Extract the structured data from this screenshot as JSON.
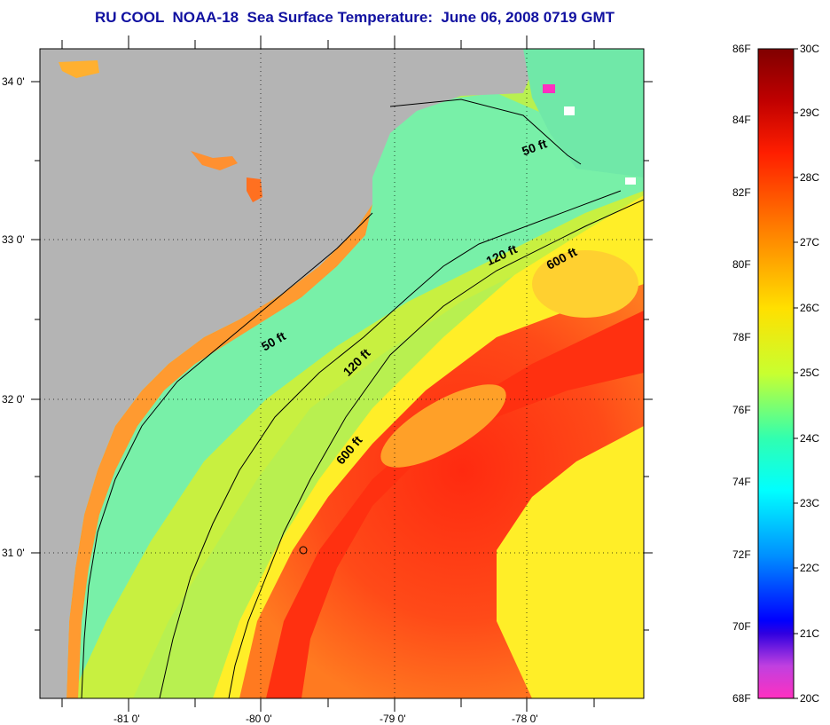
{
  "title": "RU COOL  NOAA-18  Sea Surface Temperature:  June 06, 2008 0719 GMT",
  "map": {
    "lat_labels": [
      "34 0'",
      "33 0'",
      "32 0'",
      "31 0'"
    ],
    "lon_labels": [
      "-81 0'",
      "-80 0'",
      "-79 0'",
      "-78 0'"
    ],
    "contours": [
      {
        "label": "50 ft"
      },
      {
        "label": "120 ft"
      },
      {
        "label": "600 ft"
      }
    ],
    "colors": {
      "land": "#b4b4b4",
      "warm": "#ff3c14",
      "mid": "#ffee28",
      "cool": "#70f0a0",
      "gridline": "#000000"
    }
  },
  "colorbar": {
    "fahrenheit": [
      "86F",
      "84F",
      "82F",
      "80F",
      "78F",
      "76F",
      "74F",
      "72F",
      "70F",
      "68F"
    ],
    "celsius": [
      "30C",
      "29C",
      "28C",
      "27C",
      "26C",
      "25C",
      "24C",
      "23C",
      "22C",
      "21C",
      "20C"
    ]
  }
}
